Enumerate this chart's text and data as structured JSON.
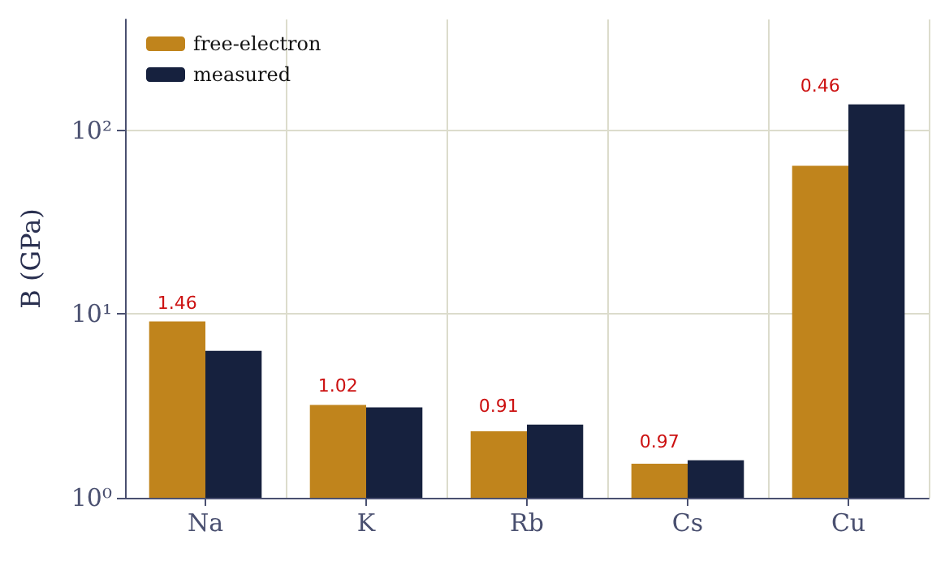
{
  "chart_data": {
    "type": "bar",
    "ylabel": "B (GPa)",
    "categories": [
      "Na",
      "K",
      "Rb",
      "Cs",
      "Cu"
    ],
    "series": [
      {
        "name": "free-electron",
        "color": "#c0841c",
        "values": [
          9.1,
          3.2,
          2.3,
          1.53,
          64
        ]
      },
      {
        "name": "measured",
        "color": "#16213e",
        "values": [
          6.3,
          3.1,
          2.5,
          1.6,
          138
        ]
      }
    ],
    "log": true,
    "ylim": [
      1,
      400
    ],
    "yticks": [
      {
        "value": 1,
        "label": "10⁰"
      },
      {
        "value": 10,
        "label": "10¹"
      },
      {
        "value": 100,
        "label": "10²"
      }
    ],
    "grid": true,
    "legend": "top left",
    "annotations": [
      {
        "text": "1.46",
        "x": "Na",
        "y": 9.1
      },
      {
        "text": "1.02",
        "x": "K",
        "y": 3.2
      },
      {
        "text": "0.91",
        "x": "Rb",
        "y": 2.5
      },
      {
        "text": "0.97",
        "x": "Cs",
        "y": 1.6
      },
      {
        "text": "0.46",
        "x": "Cu",
        "y": 138
      }
    ]
  }
}
